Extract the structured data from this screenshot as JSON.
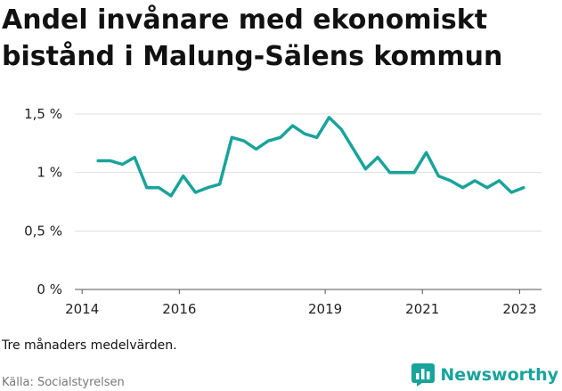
{
  "title": "Andel invånare med ekonomiskt bistånd i Malung-Sälens kommun",
  "note": "Tre månaders medelvärden.",
  "source": "Källa: Socialstyrelsen",
  "brand": {
    "name": "Newsworthy",
    "icon": "bar-chart-icon",
    "color": "#19a39b"
  },
  "colors": {
    "line": "#19a39b",
    "grid": "#dddddd",
    "axis": "#555555"
  },
  "chart_data": {
    "type": "line",
    "title": "Andel invånare med ekonomiskt bistånd i Malung-Sälens kommun",
    "xlabel": "",
    "ylabel": "",
    "xlim": [
      2013.85,
      2023.45
    ],
    "ylim": [
      0,
      1.5
    ],
    "grid": true,
    "y_ticks": [
      {
        "value": 0,
        "label": "0 %"
      },
      {
        "value": 0.5,
        "label": "0,5 %"
      },
      {
        "value": 1,
        "label": "1 %"
      },
      {
        "value": 1.5,
        "label": "1,5 %"
      }
    ],
    "x_ticks": [
      {
        "value": 2014,
        "label": "2014"
      },
      {
        "value": 2016,
        "label": "2016"
      },
      {
        "value": 2019,
        "label": "2019"
      },
      {
        "value": 2021,
        "label": "2021"
      },
      {
        "value": 2023,
        "label": "2023"
      }
    ],
    "series": [
      {
        "points": [
          {
            "x": 2014.33,
            "y": 1.1
          },
          {
            "x": 2014.58,
            "y": 1.1
          },
          {
            "x": 2014.83,
            "y": 1.07
          },
          {
            "x": 2015.08,
            "y": 1.13
          },
          {
            "x": 2015.33,
            "y": 0.87
          },
          {
            "x": 2015.58,
            "y": 0.87
          },
          {
            "x": 2015.83,
            "y": 0.8
          },
          {
            "x": 2016.08,
            "y": 0.97
          },
          {
            "x": 2016.33,
            "y": 0.83
          },
          {
            "x": 2016.58,
            "y": 0.87
          },
          {
            "x": 2016.83,
            "y": 0.9
          },
          {
            "x": 2017.08,
            "y": 1.3
          },
          {
            "x": 2017.33,
            "y": 1.27
          },
          {
            "x": 2017.58,
            "y": 1.2
          },
          {
            "x": 2017.83,
            "y": 1.27
          },
          {
            "x": 2018.08,
            "y": 1.3
          },
          {
            "x": 2018.33,
            "y": 1.4
          },
          {
            "x": 2018.58,
            "y": 1.33
          },
          {
            "x": 2018.83,
            "y": 1.3
          },
          {
            "x": 2019.08,
            "y": 1.47
          },
          {
            "x": 2019.33,
            "y": 1.37
          },
          {
            "x": 2019.58,
            "y": 1.2
          },
          {
            "x": 2019.83,
            "y": 1.03
          },
          {
            "x": 2020.08,
            "y": 1.13
          },
          {
            "x": 2020.33,
            "y": 1.0
          },
          {
            "x": 2020.58,
            "y": 1.0
          },
          {
            "x": 2020.83,
            "y": 1.0
          },
          {
            "x": 2021.08,
            "y": 1.17
          },
          {
            "x": 2021.33,
            "y": 0.97
          },
          {
            "x": 2021.58,
            "y": 0.93
          },
          {
            "x": 2021.83,
            "y": 0.87
          },
          {
            "x": 2022.08,
            "y": 0.93
          },
          {
            "x": 2022.33,
            "y": 0.87
          },
          {
            "x": 2022.58,
            "y": 0.93
          },
          {
            "x": 2022.83,
            "y": 0.83
          },
          {
            "x": 2023.08,
            "y": 0.87
          }
        ]
      }
    ]
  }
}
